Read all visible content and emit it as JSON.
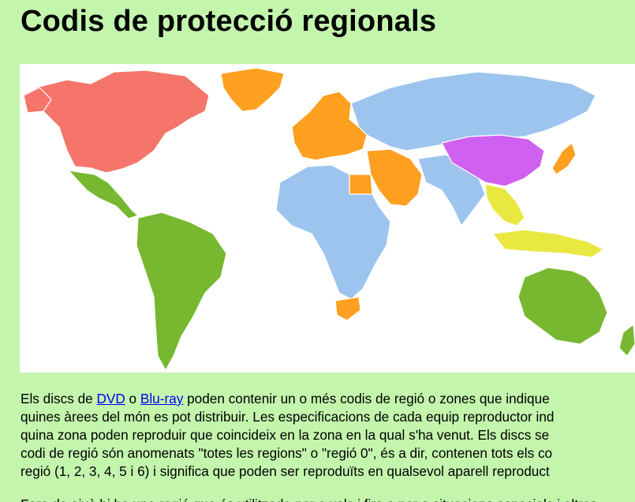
{
  "title": "Codis de protecció regionals",
  "map": {
    "alt": "",
    "region_colors": {
      "region_1": "#f5756b",
      "region_2": "#ffa020",
      "region_3": "#e8e840",
      "region_4": "#77b830",
      "region_5": "#9cc4ef",
      "region_6": "#d060f0"
    }
  },
  "paragraph1": {
    "l1_pre": "Els discs de ",
    "link_dvd": "DVD",
    "l1_mid": " o ",
    "link_bluray": "Blu-ray",
    "l1_post": " poden contenir un o més codis de regió o zones que indique",
    "l2": "quines àrees del món es pot distribuir. Les especificacions de cada equip reproductor ind",
    "l3": "quina zona poden reproduir que coincideix en la zona en la qual s'ha venut. Els discs se",
    "l4": "codi de regió són anomenats \"totes les regions\" o \"regió 0\", és a dir, contenen tots els co",
    "l5": "regió (1, 2, 3, 4, 5 i 6) i significa que poden ser reproduïts en qualsevol aparell reproduct"
  },
  "paragraph2": {
    "l1": "Fora de això hi ha una regió que és utilitzada per a vols i fira o per a situacions especials i altres"
  }
}
